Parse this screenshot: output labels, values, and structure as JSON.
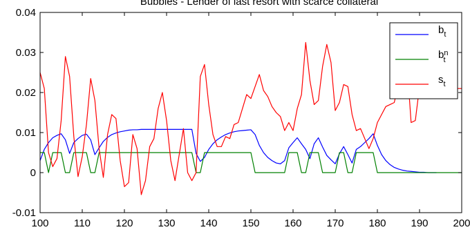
{
  "chart_data": {
    "type": "line",
    "title": "Bubbles - Lender of last resort with scarce collateral",
    "xlim": [
      100,
      200
    ],
    "ylim": [
      -0.01,
      0.04
    ],
    "x_ticks": [
      "100",
      "110",
      "120",
      "130",
      "140",
      "150",
      "160",
      "170",
      "180",
      "190",
      "200"
    ],
    "y_ticks": [
      "-0.01",
      "0",
      "0.01",
      "0.02",
      "0.03",
      "0.04"
    ],
    "grid": false,
    "legend_position": "top-right",
    "series": [
      {
        "name": "b_t",
        "label_main": "b",
        "label_sub": "t",
        "label_sup": "",
        "color": "#0000ff",
        "x": [
          100,
          101,
          102,
          103,
          104,
          105,
          106,
          107,
          108,
          109,
          110,
          111,
          112,
          113,
          114,
          115,
          116,
          117,
          118,
          119,
          120,
          121,
          122,
          123,
          124,
          125,
          126,
          127,
          128,
          129,
          130,
          131,
          132,
          133,
          134,
          135,
          136,
          137,
          138,
          139,
          140,
          141,
          142,
          143,
          144,
          145,
          146,
          147,
          148,
          149,
          150,
          151,
          152,
          153,
          154,
          155,
          156,
          157,
          158,
          159,
          160,
          161,
          162,
          163,
          164,
          165,
          166,
          167,
          168,
          169,
          170,
          171,
          172,
          173,
          174,
          175,
          176,
          177,
          178,
          179,
          180,
          181,
          182,
          183,
          184,
          185,
          186,
          187,
          188,
          189,
          190,
          191,
          192,
          193,
          194
        ],
        "y": [
          0.003,
          0.0058,
          0.0075,
          0.0087,
          0.0093,
          0.0097,
          0.0082,
          0.0048,
          0.0075,
          0.0085,
          0.0093,
          0.0096,
          0.0082,
          0.0045,
          0.0062,
          0.0078,
          0.0088,
          0.0095,
          0.0099,
          0.0102,
          0.0104,
          0.0106,
          0.0107,
          0.0107,
          0.0108,
          0.0108,
          0.0108,
          0.0108,
          0.0108,
          0.0108,
          0.0108,
          0.0108,
          0.0108,
          0.0108,
          0.0108,
          0.0108,
          0.0108,
          0.0048,
          0.0028,
          0.0038,
          0.0058,
          0.0072,
          0.0082,
          0.0089,
          0.0095,
          0.0099,
          0.0102,
          0.0104,
          0.0105,
          0.0106,
          0.0107,
          0.0095,
          0.0068,
          0.005,
          0.0038,
          0.003,
          0.0024,
          0.0022,
          0.003,
          0.0062,
          0.0075,
          0.0087,
          0.0072,
          0.0058,
          0.0035,
          0.0072,
          0.0087,
          0.0064,
          0.0043,
          0.0032,
          0.0022,
          0.0047,
          0.0065,
          0.0045,
          0.0024,
          0.0058,
          0.0065,
          0.0075,
          0.0085,
          0.0097,
          0.0068,
          0.0045,
          0.003,
          0.002,
          0.0013,
          0.0009,
          0.0006,
          0.0004,
          0.0003,
          0.0002,
          0.0001,
          0.0001,
          0.0,
          0.0,
          0.0
        ]
      },
      {
        "name": "b_t^n",
        "label_main": "b",
        "label_sub": "t",
        "label_sup": "n",
        "color": "#008000",
        "x": [
          100,
          101,
          102,
          103,
          104,
          105,
          106,
          107,
          108,
          109,
          110,
          111,
          112,
          113,
          114,
          115,
          116,
          117,
          118,
          119,
          120,
          121,
          122,
          123,
          124,
          125,
          126,
          127,
          128,
          129,
          130,
          131,
          132,
          133,
          134,
          135,
          136,
          137,
          138,
          139,
          140,
          141,
          142,
          143,
          144,
          145,
          146,
          147,
          148,
          149,
          150,
          151,
          152,
          153,
          154,
          155,
          156,
          157,
          158,
          159,
          160,
          161,
          162,
          163,
          164,
          165,
          166,
          167,
          168,
          169,
          170,
          171,
          172,
          173,
          174,
          175,
          176,
          177,
          178,
          179,
          180,
          181,
          182,
          183,
          184,
          185,
          186,
          187,
          188,
          189,
          190,
          191,
          192,
          193,
          194,
          195,
          196,
          197,
          198,
          199,
          200
        ],
        "y": [
          0.005,
          0.005,
          0.0,
          0.005,
          0.005,
          0.005,
          0.0,
          0.0,
          0.005,
          0.005,
          0.005,
          0.005,
          0.0,
          0.0,
          0.005,
          0.005,
          0.005,
          0.005,
          0.005,
          0.005,
          0.005,
          0.005,
          0.005,
          0.005,
          0.005,
          0.005,
          0.005,
          0.005,
          0.005,
          0.005,
          0.005,
          0.005,
          0.005,
          0.005,
          0.005,
          0.005,
          0.005,
          0.0,
          0.0,
          0.005,
          0.005,
          0.005,
          0.005,
          0.005,
          0.005,
          0.005,
          0.005,
          0.005,
          0.005,
          0.005,
          0.005,
          0.0,
          0.0,
          0.0,
          0.0,
          0.0,
          0.0,
          0.0,
          0.0,
          0.005,
          0.005,
          0.005,
          0.0,
          0.0,
          0.005,
          0.005,
          0.005,
          0.0,
          0.0,
          0.0,
          0.0,
          0.005,
          0.005,
          0.0,
          0.0,
          0.005,
          0.005,
          0.005,
          0.005,
          0.005,
          0.0,
          0.0,
          0.0,
          0.0,
          0.0,
          0.0,
          0.0,
          0.0,
          0.0,
          0.0,
          0.0,
          0.0,
          0.0,
          0.0,
          0.0,
          0.0,
          0.0,
          0.0,
          0.0,
          0.0,
          0.0
        ]
      },
      {
        "name": "s_t",
        "label_main": "s",
        "label_sub": "t",
        "label_sup": "",
        "color": "#ff0000",
        "x": [
          100,
          101,
          102,
          103,
          104,
          105,
          106,
          107,
          108,
          109,
          110,
          111,
          112,
          113,
          114,
          115,
          116,
          117,
          118,
          119,
          120,
          121,
          122,
          123,
          124,
          125,
          126,
          127,
          128,
          129,
          130,
          131,
          132,
          133,
          134,
          135,
          136,
          137,
          138,
          139,
          140,
          141,
          142,
          143,
          144,
          145,
          146,
          147,
          148,
          149,
          150,
          151,
          152,
          153,
          154,
          155,
          156,
          157,
          158,
          159,
          160,
          161,
          162,
          163,
          164,
          165,
          166,
          167,
          168,
          169,
          170,
          171,
          172,
          173,
          174,
          175,
          176,
          177,
          178,
          179,
          180,
          181,
          182,
          183,
          184,
          185,
          186,
          187,
          188,
          189,
          190,
          191,
          192,
          193,
          194,
          195,
          196,
          197,
          198,
          199,
          200
        ],
        "y": [
          0.025,
          0.021,
          0.005,
          0.0015,
          0.0035,
          0.013,
          0.029,
          0.024,
          0.009,
          -0.001,
          0.004,
          0.012,
          0.0235,
          0.018,
          0.006,
          -0.0012,
          0.0095,
          0.0145,
          0.0135,
          0.003,
          -0.0035,
          -0.0025,
          0.0095,
          0.006,
          -0.0055,
          -0.002,
          0.0065,
          0.0085,
          0.016,
          0.02,
          0.013,
          0.003,
          -0.002,
          0.0045,
          0.011,
          0.0,
          -0.002,
          0.0,
          0.024,
          0.027,
          0.017,
          0.0095,
          0.0065,
          0.0065,
          0.009,
          0.0085,
          0.012,
          0.0125,
          0.016,
          0.0195,
          0.0185,
          0.0215,
          0.0245,
          0.0205,
          0.019,
          0.0165,
          0.015,
          0.014,
          0.0105,
          0.0125,
          0.0105,
          0.016,
          0.0195,
          0.0325,
          0.023,
          0.017,
          0.018,
          0.0265,
          0.032,
          0.0275,
          0.0155,
          0.0175,
          0.022,
          0.0215,
          0.0145,
          0.0105,
          0.011,
          0.0085,
          0.006,
          0.0085,
          0.0125,
          0.0145,
          0.0165,
          0.017,
          0.0175,
          0.022,
          0.0185,
          0.0275,
          0.0125,
          0.013,
          0.0215,
          0.021,
          0.021,
          0.0215,
          0.021,
          0.021,
          0.021,
          0.021,
          0.021,
          0.021,
          0.021
        ]
      }
    ]
  }
}
